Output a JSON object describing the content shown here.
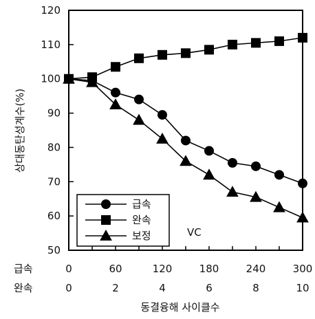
{
  "chart_data": {
    "type": "line",
    "title": "",
    "ylabel": "상대동탄성계수(%)",
    "xlabel": "동결융해 사이클수",
    "ylim": [
      50,
      120
    ],
    "y_ticks": [
      50,
      60,
      70,
      80,
      90,
      100,
      110,
      120
    ],
    "x_rows": [
      {
        "label": "급속",
        "ticks": [
          "0",
          "60",
          "120",
          "180",
          "240",
          "300"
        ]
      },
      {
        "label": "완속",
        "ticks": [
          "0",
          "2",
          "4",
          "6",
          "8",
          "10"
        ]
      }
    ],
    "x": [
      0,
      30,
      60,
      90,
      120,
      150,
      180,
      210,
      240,
      270,
      300
    ],
    "xlim": [
      0,
      300
    ],
    "series": [
      {
        "name": "급속",
        "marker": "circle",
        "values": [
          100,
          99.5,
          96,
          94,
          89.5,
          82,
          79,
          75.5,
          74.5,
          72,
          69.5
        ]
      },
      {
        "name": "완속",
        "marker": "square",
        "values": [
          100,
          100.5,
          103.5,
          106,
          107,
          107.5,
          108.5,
          110,
          110.5,
          111,
          112
        ]
      },
      {
        "name": "보정",
        "marker": "triangle",
        "values": [
          100,
          99,
          92.5,
          88,
          82.5,
          76,
          72,
          67,
          65.5,
          62.5,
          59.5
        ]
      }
    ],
    "annotation": "VC",
    "legend_position": "bottom-left",
    "grid": false,
    "colors": {
      "line": "#000000",
      "marker": "#000000",
      "background": "#ffffff"
    }
  }
}
